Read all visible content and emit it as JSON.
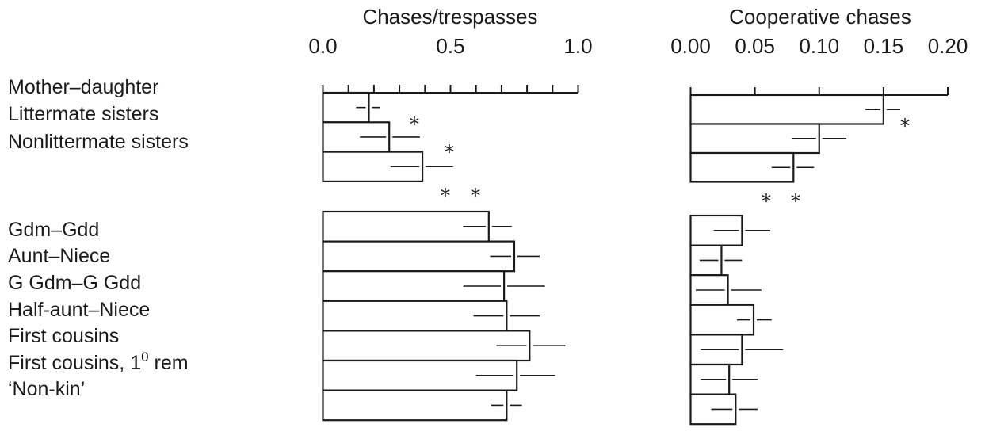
{
  "chart_data": [
    {
      "type": "bar",
      "orientation": "horizontal",
      "title": "Chases/trespasses",
      "xlim": [
        0,
        1.0
      ],
      "tick_labels": [
        "0.0",
        "0.5",
        "1.0"
      ],
      "tick_values": [
        0,
        0.5,
        1.0
      ],
      "minor_tick_step": 0.1,
      "groups": [
        {
          "categories": [
            "Mother–daughter",
            "Littermate sisters",
            "Nonlittermate sisters"
          ],
          "values": [
            0.18,
            0.26,
            0.39
          ],
          "error_low": [
            0.13,
            0.145,
            0.265
          ],
          "error_high": [
            0.225,
            0.38,
            0.51
          ],
          "markers": [
            "",
            "*",
            "*"
          ]
        },
        {
          "categories": [
            "Gdm–Gdd",
            "Aunt–Niece",
            "G Gdm–G Gdd",
            "Half-aunt–Niece",
            "First cousins",
            "First cousins, 1⁰ rem",
            "‘Non-kin’"
          ],
          "values": [
            0.65,
            0.75,
            0.71,
            0.72,
            0.81,
            0.76,
            0.72
          ],
          "error_low": [
            0.55,
            0.655,
            0.55,
            0.59,
            0.68,
            0.6,
            0.66
          ],
          "error_high": [
            0.74,
            0.85,
            0.87,
            0.85,
            0.95,
            0.91,
            0.78
          ]
        }
      ],
      "between_group_markers": [
        "*",
        "*"
      ]
    },
    {
      "type": "bar",
      "orientation": "horizontal",
      "title": "Cooperative chases",
      "xlim": [
        0,
        0.2
      ],
      "tick_labels": [
        "0.00",
        "0.05",
        "0.10",
        "0.15",
        "0.20"
      ],
      "tick_values": [
        0,
        0.05,
        0.1,
        0.15,
        0.2
      ],
      "groups": [
        {
          "categories": [
            "Mother–daughter",
            "Littermate sisters",
            "Nonlittermate sisters"
          ],
          "values": [
            0.15,
            0.1,
            0.08
          ],
          "error_low": [
            0.136,
            0.079,
            0.063
          ],
          "error_high": [
            0.163,
            0.121,
            0.096
          ],
          "markers": [
            "*",
            "",
            ""
          ]
        },
        {
          "categories": [
            "Gdm–Gdd",
            "Aunt–Niece",
            "G Gdm–G Gdd",
            "Half-aunt–Niece",
            "First cousins",
            "First cousins, 1⁰ rem",
            "‘Non-kin’"
          ],
          "values": [
            0.04,
            0.024,
            0.029,
            0.049,
            0.04,
            0.03,
            0.035
          ],
          "error_low": [
            0.018,
            0.007,
            0.004,
            0.036,
            0.008,
            0.008,
            0.016
          ],
          "error_high": [
            0.062,
            0.04,
            0.055,
            0.063,
            0.072,
            0.052,
            0.052
          ]
        }
      ],
      "between_group_markers": [
        "*",
        "*"
      ]
    }
  ],
  "labels": [
    "Mother–daughter",
    "Littermate sisters",
    "Nonlittermate sisters",
    "Gdm–Gdd",
    "Aunt–Niece",
    "G Gdm–G Gdd",
    "Half-aunt–Niece",
    "First cousins",
    "First cousins, 1⁰ rem",
    "‘Non-kin’"
  ],
  "colors": {
    "ink": "#1a1a1a",
    "bar_fill": "#ffffff"
  }
}
